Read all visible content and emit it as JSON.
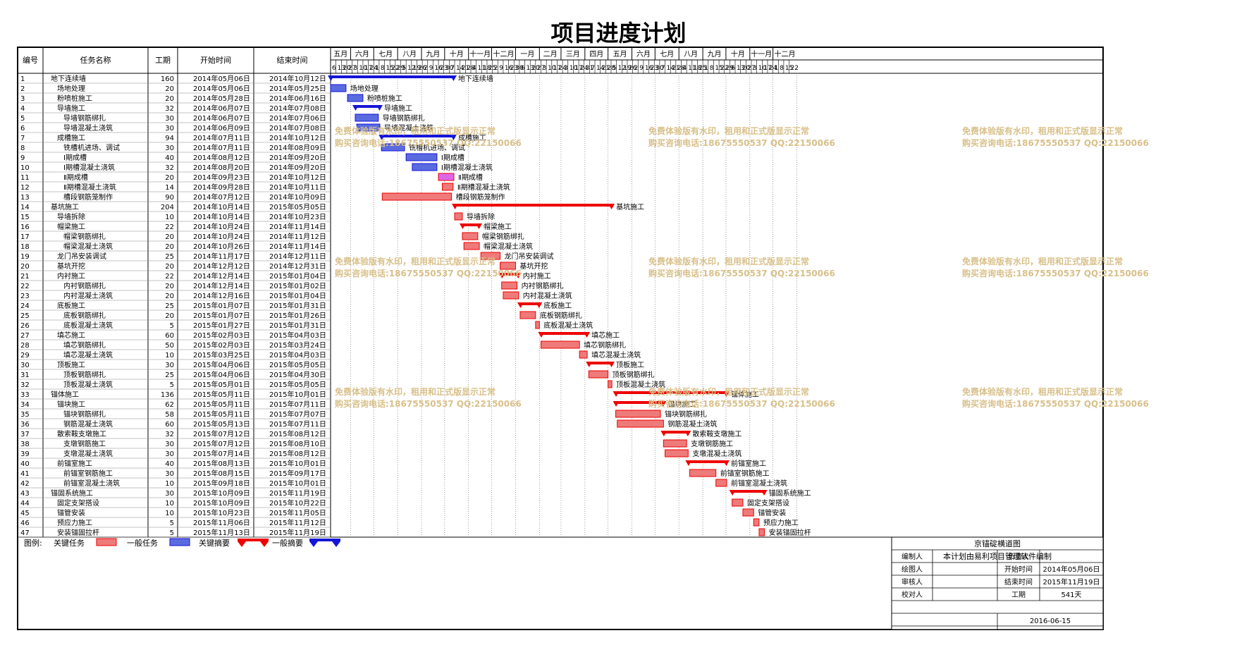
{
  "title": "项目进度计划",
  "table": {
    "headers": {
      "id": "编号",
      "name": "任务名称",
      "duration": "工期",
      "start": "开始时间",
      "end": "结束时间"
    }
  },
  "timeline": {
    "months": [
      "五月",
      "六月",
      "七月",
      "八月",
      "九月",
      "十月",
      "十一月",
      "十二月",
      "一月",
      "二月",
      "三月",
      "四月",
      "五月",
      "六月",
      "七月",
      "八月",
      "九月",
      "十月",
      "十一月",
      "十二月"
    ],
    "day_ticks": [
      "6",
      "13",
      "20",
      "27",
      "3",
      "10",
      "17",
      "24",
      "1",
      "8",
      "15",
      "22",
      "29",
      "5",
      "12",
      "19",
      "26",
      "2",
      "9",
      "16",
      "23",
      "30",
      "7",
      "14",
      "21",
      "28",
      "4",
      "11",
      "18",
      "25",
      "2",
      "9",
      "16",
      "23",
      "30",
      "6",
      "13",
      "20",
      "27",
      "3",
      "10",
      "17",
      "24",
      "3",
      "10",
      "17",
      "24",
      "31",
      "7",
      "14",
      "21",
      "28",
      "5",
      "12",
      "19",
      "26",
      "2",
      "9",
      "16",
      "23",
      "30",
      "7",
      "14",
      "21",
      "28",
      "4",
      "11",
      "18",
      "25",
      "1",
      "8",
      "15",
      "22",
      "29",
      "6",
      "13",
      "20",
      "27",
      "3",
      "10",
      "17",
      "24",
      "1",
      "8",
      "15",
      "22"
    ]
  },
  "chart_data": {
    "type": "gantt",
    "title": "项目进度计划",
    "x_range": [
      "2014-05-06",
      "2015-12-27"
    ],
    "tasks": [
      {
        "id": "1",
        "name": "地下连续墙",
        "level": 0,
        "duration": "160",
        "start": "2014年05月06日",
        "end": "2014年10月12日",
        "kind": "summary",
        "color": "blue"
      },
      {
        "id": "2",
        "name": "场地处理",
        "level": 1,
        "duration": "20",
        "start": "2014年05月06日",
        "end": "2014年05月25日",
        "kind": "task",
        "color": "blue"
      },
      {
        "id": "3",
        "name": "粉喷桩施工",
        "level": 1,
        "duration": "20",
        "start": "2014年05月28日",
        "end": "2014年06月16日",
        "kind": "task",
        "color": "blue"
      },
      {
        "id": "4",
        "name": "导墙施工",
        "level": 1,
        "duration": "32",
        "start": "2014年06月07日",
        "end": "2014年07月08日",
        "kind": "summary",
        "color": "blue"
      },
      {
        "id": "5",
        "name": "导墙钢筋绑扎",
        "level": 2,
        "duration": "30",
        "start": "2014年06月07日",
        "end": "2014年07月06日",
        "kind": "task",
        "color": "blue"
      },
      {
        "id": "6",
        "name": "导墙混凝土浇筑",
        "level": 2,
        "duration": "30",
        "start": "2014年06月09日",
        "end": "2014年07月08日",
        "kind": "task",
        "color": "blue"
      },
      {
        "id": "7",
        "name": "成槽施工",
        "level": 1,
        "duration": "94",
        "start": "2014年07月11日",
        "end": "2014年10月12日",
        "kind": "summary",
        "color": "blue"
      },
      {
        "id": "8",
        "name": "铣槽机进场、调试",
        "level": 2,
        "duration": "30",
        "start": "2014年07月11日",
        "end": "2014年08月09日",
        "kind": "task",
        "color": "blue"
      },
      {
        "id": "9",
        "name": "Ⅰ期成槽",
        "level": 2,
        "duration": "40",
        "start": "2014年08月12日",
        "end": "2014年09月20日",
        "kind": "task",
        "color": "blue"
      },
      {
        "id": "10",
        "name": "Ⅰ期槽混凝土浇筑",
        "level": 2,
        "duration": "32",
        "start": "2014年08月20日",
        "end": "2014年09月20日",
        "kind": "task",
        "color": "blue"
      },
      {
        "id": "11",
        "name": "Ⅱ期成槽",
        "level": 2,
        "duration": "20",
        "start": "2014年09月23日",
        "end": "2014年10月12日",
        "kind": "task",
        "color": "magenta"
      },
      {
        "id": "12",
        "name": "Ⅱ期槽混凝土浇筑",
        "level": 2,
        "duration": "14",
        "start": "2014年09月28日",
        "end": "2014年10月11日",
        "kind": "task",
        "color": "red"
      },
      {
        "id": "13",
        "name": "槽段钢筋笼制作",
        "level": 2,
        "duration": "90",
        "start": "2014年07月12日",
        "end": "2014年10月09日",
        "kind": "task",
        "color": "red"
      },
      {
        "id": "14",
        "name": "基坑施工",
        "level": 0,
        "duration": "204",
        "start": "2014年10月14日",
        "end": "2015年05月05日",
        "kind": "summary",
        "color": "red"
      },
      {
        "id": "15",
        "name": "导墙拆除",
        "level": 1,
        "duration": "10",
        "start": "2014年10月14日",
        "end": "2014年10月23日",
        "kind": "task",
        "color": "red"
      },
      {
        "id": "16",
        "name": "帽梁施工",
        "level": 1,
        "duration": "22",
        "start": "2014年10月24日",
        "end": "2014年11月14日",
        "kind": "summary",
        "color": "red"
      },
      {
        "id": "17",
        "name": "帽梁钢筋绑扎",
        "level": 2,
        "duration": "20",
        "start": "2014年10月24日",
        "end": "2014年11月12日",
        "kind": "task",
        "color": "red"
      },
      {
        "id": "18",
        "name": "帽梁混凝土浇筑",
        "level": 2,
        "duration": "20",
        "start": "2014年10月26日",
        "end": "2014年11月14日",
        "kind": "task",
        "color": "red"
      },
      {
        "id": "19",
        "name": "龙门吊安装调试",
        "level": 1,
        "duration": "25",
        "start": "2014年11月17日",
        "end": "2014年12月11日",
        "kind": "task",
        "color": "red"
      },
      {
        "id": "20",
        "name": "基坑开挖",
        "level": 1,
        "duration": "20",
        "start": "2014年12月12日",
        "end": "2014年12月31日",
        "kind": "task",
        "color": "red"
      },
      {
        "id": "21",
        "name": "内衬施工",
        "level": 1,
        "duration": "22",
        "start": "2014年12月14日",
        "end": "2015年01月04日",
        "kind": "summary",
        "color": "red"
      },
      {
        "id": "22",
        "name": "内衬钢筋绑扎",
        "level": 2,
        "duration": "20",
        "start": "2014年12月14日",
        "end": "2015年01月02日",
        "kind": "task",
        "color": "red"
      },
      {
        "id": "23",
        "name": "内衬混凝土浇筑",
        "level": 2,
        "duration": "20",
        "start": "2014年12月16日",
        "end": "2015年01月04日",
        "kind": "task",
        "color": "red"
      },
      {
        "id": "24",
        "name": "底板施工",
        "level": 1,
        "duration": "25",
        "start": "2015年01月07日",
        "end": "2015年01月31日",
        "kind": "summary",
        "color": "red"
      },
      {
        "id": "25",
        "name": "底板钢筋绑扎",
        "level": 2,
        "duration": "20",
        "start": "2015年01月07日",
        "end": "2015年01月26日",
        "kind": "task",
        "color": "red"
      },
      {
        "id": "26",
        "name": "底板混凝土浇筑",
        "level": 2,
        "duration": "5",
        "start": "2015年01月27日",
        "end": "2015年01月31日",
        "kind": "task",
        "color": "red"
      },
      {
        "id": "27",
        "name": "填芯施工",
        "level": 1,
        "duration": "60",
        "start": "2015年02月03日",
        "end": "2015年04月03日",
        "kind": "summary",
        "color": "red"
      },
      {
        "id": "28",
        "name": "填芯钢筋绑扎",
        "level": 2,
        "duration": "50",
        "start": "2015年02月03日",
        "end": "2015年03月24日",
        "kind": "task",
        "color": "red"
      },
      {
        "id": "29",
        "name": "填芯混凝土浇筑",
        "level": 2,
        "duration": "10",
        "start": "2015年03月25日",
        "end": "2015年04月03日",
        "kind": "task",
        "color": "red"
      },
      {
        "id": "30",
        "name": "顶板施工",
        "level": 1,
        "duration": "30",
        "start": "2015年04月06日",
        "end": "2015年05月05日",
        "kind": "summary",
        "color": "red"
      },
      {
        "id": "31",
        "name": "顶板钢筋绑扎",
        "level": 2,
        "duration": "25",
        "start": "2015年04月06日",
        "end": "2015年04月30日",
        "kind": "task",
        "color": "red"
      },
      {
        "id": "32",
        "name": "顶板混凝土浇筑",
        "level": 2,
        "duration": "5",
        "start": "2015年05月01日",
        "end": "2015年05月05日",
        "kind": "task",
        "color": "red"
      },
      {
        "id": "33",
        "name": "锚体施工",
        "level": 0,
        "duration": "136",
        "start": "2015年05月11日",
        "end": "2015年10月01日",
        "kind": "summary",
        "color": "red"
      },
      {
        "id": "34",
        "name": "锚块施工",
        "level": 1,
        "duration": "62",
        "start": "2015年05月11日",
        "end": "2015年07月11日",
        "kind": "summary",
        "color": "red"
      },
      {
        "id": "35",
        "name": "锚块钢筋绑扎",
        "level": 2,
        "duration": "58",
        "start": "2015年05月11日",
        "end": "2015年07月07日",
        "kind": "task",
        "color": "red"
      },
      {
        "id": "36",
        "name": "钢筋混凝土浇筑",
        "level": 2,
        "duration": "60",
        "start": "2015年05月13日",
        "end": "2015年07月11日",
        "kind": "task",
        "color": "red"
      },
      {
        "id": "37",
        "name": "散索鞍支墩施工",
        "level": 1,
        "duration": "32",
        "start": "2015年07月12日",
        "end": "2015年08月12日",
        "kind": "summary",
        "color": "red"
      },
      {
        "id": "38",
        "name": "支墩钢筋施工",
        "level": 2,
        "duration": "30",
        "start": "2015年07月12日",
        "end": "2015年08月10日",
        "kind": "task",
        "color": "red"
      },
      {
        "id": "39",
        "name": "支墩混凝土浇筑",
        "level": 2,
        "duration": "30",
        "start": "2015年07月14日",
        "end": "2015年08月12日",
        "kind": "task",
        "color": "red"
      },
      {
        "id": "40",
        "name": "前锚室施工",
        "level": 1,
        "duration": "40",
        "start": "2015年08月13日",
        "end": "2015年10月01日",
        "kind": "summary",
        "color": "red"
      },
      {
        "id": "41",
        "name": "前锚室钢筋施工",
        "level": 2,
        "duration": "30",
        "start": "2015年08月15日",
        "end": "2015年09月17日",
        "kind": "task",
        "color": "red"
      },
      {
        "id": "42",
        "name": "前锚室混凝土浇筑",
        "level": 2,
        "duration": "10",
        "start": "2015年09月18日",
        "end": "2015年10月01日",
        "kind": "task",
        "color": "red"
      },
      {
        "id": "43",
        "name": "锚固系统施工",
        "level": 0,
        "duration": "30",
        "start": "2015年10月09日",
        "end": "2015年11月19日",
        "kind": "summary",
        "color": "red"
      },
      {
        "id": "44",
        "name": "固定支架搭设",
        "level": 1,
        "duration": "10",
        "start": "2015年10月09日",
        "end": "2015年10月22日",
        "kind": "task",
        "color": "red"
      },
      {
        "id": "45",
        "name": "锚管安装",
        "level": 1,
        "duration": "10",
        "start": "2015年10月23日",
        "end": "2015年11月05日",
        "kind": "task",
        "color": "red"
      },
      {
        "id": "46",
        "name": "预应力施工",
        "level": 1,
        "duration": "5",
        "start": "2015年11月06日",
        "end": "2015年11月12日",
        "kind": "task",
        "color": "red"
      },
      {
        "id": "47",
        "name": "安装锚固拉杆",
        "level": 1,
        "duration": "5",
        "start": "2015年11月13日",
        "end": "2015年11月19日",
        "kind": "task",
        "color": "red"
      }
    ]
  },
  "watermark": {
    "line1": "免费体验版有水印，租用和正式版显示正常",
    "line2": "购买咨询电话:18675550537 QQ:22150066"
  },
  "legend": {
    "label": "图例:",
    "critical_task": "关键任务",
    "normal_task": "一般任务",
    "critical_summary": "关键摘要",
    "normal_summary": "一般摘要"
  },
  "info_box": {
    "project_name": "京锚碇横道图",
    "note": "本计划由易利项目管理软件编制",
    "compiler_label": "编制人",
    "owner_label": "负责人",
    "drawer_label": "绘图人",
    "start_label": "开始时间",
    "start_value": "2014年05月06日",
    "reviewer_label": "审核人",
    "end_label": "结束时间",
    "end_value": "2015年11月19日",
    "checker_label": "校对人",
    "duration_label": "工期",
    "duration_value": "541天",
    "date": "2016-06-15"
  },
  "colors": {
    "blue_bar": "#5a6be0",
    "blue_dark": "#1515d8",
    "red_bar": "#ee7a7a",
    "red_dark": "#ee0000",
    "magenta_bar": "#e066e8",
    "watermark": "#d8c08a"
  }
}
